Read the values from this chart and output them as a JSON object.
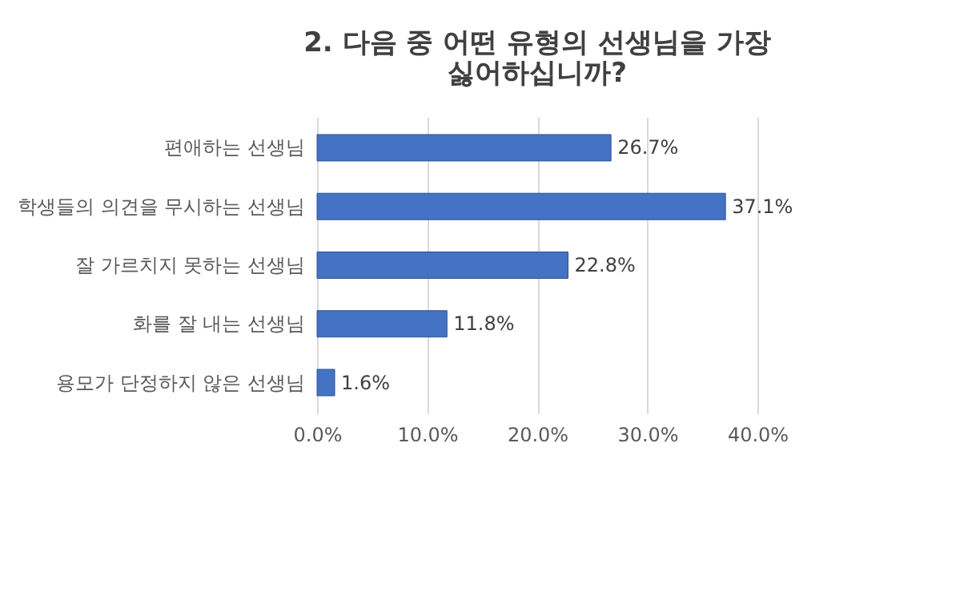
{
  "chart_data": {
    "type": "bar",
    "orientation": "horizontal",
    "title": [
      "2. 다음 중 어떤 유형의 선생님을 가장",
      "싫어하십니까?"
    ],
    "categories": [
      "편애하는 선생님",
      "학생들의 의견을 무시하는 선생님",
      "잘 가르치지 못하는 선생님",
      "화를 잘 내는 선생님",
      "용모가 단정하지 않은 선생님"
    ],
    "values": [
      26.7,
      37.1,
      22.8,
      11.8,
      1.6
    ],
    "value_labels": [
      "26.7%",
      "37.1%",
      "22.8%",
      "11.8%",
      "1.6%"
    ],
    "color": "#4472c4",
    "xlim": [
      0,
      40
    ],
    "xticks": [
      {
        "value": 0,
        "label": "0.0%"
      },
      {
        "value": 10,
        "label": "10.0%"
      },
      {
        "value": 20,
        "label": "20.0%"
      },
      {
        "value": 30,
        "label": "30.0%"
      },
      {
        "value": 40,
        "label": "40.0%"
      }
    ],
    "grid": "x"
  }
}
